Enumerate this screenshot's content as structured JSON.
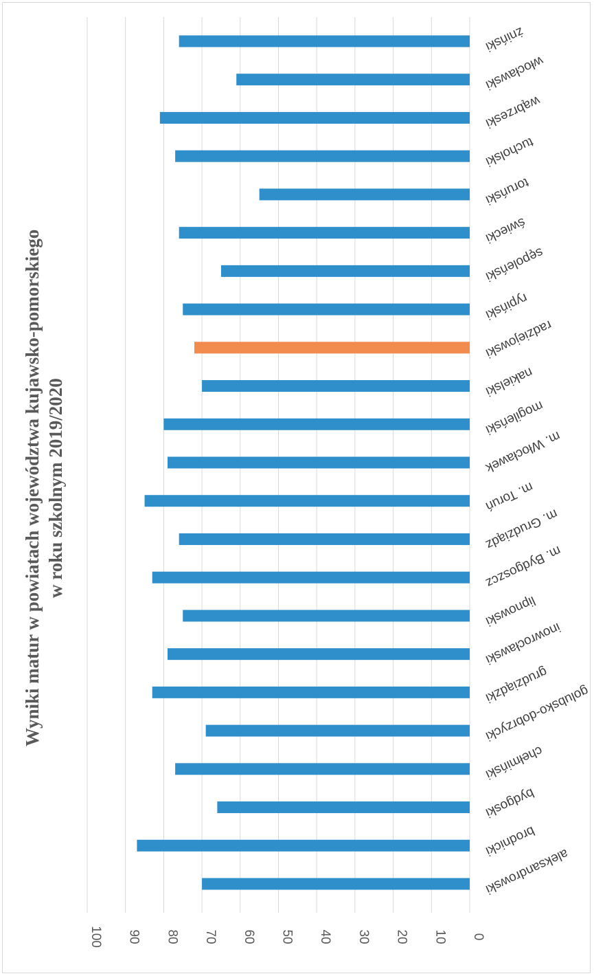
{
  "chart_data": {
    "type": "bar",
    "orientation": "horizontal-rotated",
    "title": "Wyniki matur w powiatach województwa kujawsko-pomorskiego",
    "subtitle": "w roku szkolnym 2019/2020",
    "xlabel": "",
    "ylabel": "",
    "ylim": [
      0,
      100
    ],
    "ticks": [
      "0",
      "10",
      "20",
      "30",
      "40",
      "50",
      "60",
      "70",
      "80",
      "90",
      "100"
    ],
    "grid": true,
    "colors": {
      "default": "#2e8fcb",
      "highlight": "#f28c4e",
      "grid": "#d9d9d9"
    },
    "categories": [
      "aleksandrowski",
      "brodnicki",
      "bydgoski",
      "chełmiński",
      "golubsko-dobrzycki",
      "grudziądzki",
      "inowrocławski",
      "lipnowski",
      "m. Bydgoszcz",
      "m. Grudziądz",
      "m. Toruń",
      "m. Włocławek",
      "mogileński",
      "nakielski",
      "radziejowski",
      "rypiński",
      "sępoleński",
      "świecki",
      "toruński",
      "tucholski",
      "wąbrzeski",
      "włocławski",
      "żniński"
    ],
    "values": [
      70,
      87,
      66,
      77,
      69,
      83,
      79,
      75,
      83,
      76,
      85,
      79,
      80,
      70,
      72,
      75,
      65,
      76,
      55,
      77,
      81,
      61,
      76
    ],
    "highlight_category": "radziejowski"
  }
}
